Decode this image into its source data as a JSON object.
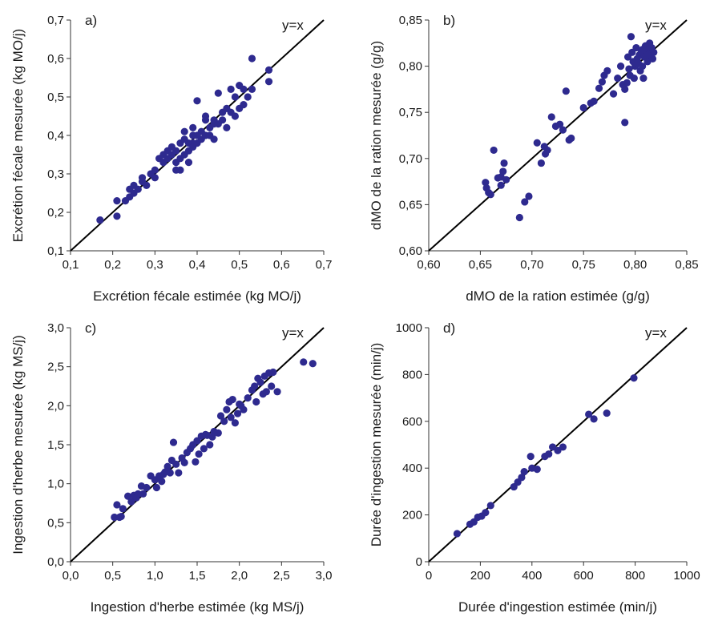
{
  "colors": {
    "point": "#2e2a8f",
    "axis": "#333333",
    "ref_line": "#000000"
  },
  "chart_data": [
    {
      "type": "scatter",
      "panel_label": "a)",
      "reference_label": "y=x",
      "xlabel": "Excrétion fécale estimée (kg MO/j)",
      "ylabel": "Excrétion fécale mesurée (kg MO/j)",
      "xlim": [
        0.1,
        0.7
      ],
      "ylim": [
        0.1,
        0.7
      ],
      "xticks": [
        0.1,
        0.2,
        0.3,
        0.4,
        0.5,
        0.6,
        0.7
      ],
      "yticks": [
        0.1,
        0.2,
        0.3,
        0.4,
        0.5,
        0.6,
        0.7
      ],
      "xtick_labels": [
        "0,1",
        "0,2",
        "0,3",
        "0,4",
        "0,5",
        "0,6",
        "0,7"
      ],
      "ytick_labels": [
        "0,1",
        "0,2",
        "0,3",
        "0,4",
        "0,5",
        "0,6",
        "0,7"
      ],
      "grid": false,
      "points": [
        [
          0.17,
          0.18
        ],
        [
          0.21,
          0.19
        ],
        [
          0.21,
          0.23
        ],
        [
          0.23,
          0.23
        ],
        [
          0.24,
          0.24
        ],
        [
          0.24,
          0.26
        ],
        [
          0.25,
          0.25
        ],
        [
          0.25,
          0.27
        ],
        [
          0.26,
          0.26
        ],
        [
          0.27,
          0.28
        ],
        [
          0.27,
          0.29
        ],
        [
          0.28,
          0.27
        ],
        [
          0.29,
          0.3
        ],
        [
          0.3,
          0.29
        ],
        [
          0.3,
          0.31
        ],
        [
          0.31,
          0.34
        ],
        [
          0.32,
          0.35
        ],
        [
          0.32,
          0.33
        ],
        [
          0.33,
          0.34
        ],
        [
          0.33,
          0.36
        ],
        [
          0.34,
          0.35
        ],
        [
          0.34,
          0.37
        ],
        [
          0.35,
          0.31
        ],
        [
          0.35,
          0.33
        ],
        [
          0.35,
          0.36
        ],
        [
          0.36,
          0.38
        ],
        [
          0.36,
          0.31
        ],
        [
          0.36,
          0.34
        ],
        [
          0.37,
          0.35
        ],
        [
          0.37,
          0.41
        ],
        [
          0.38,
          0.38
        ],
        [
          0.38,
          0.36
        ],
        [
          0.38,
          0.33
        ],
        [
          0.39,
          0.38
        ],
        [
          0.39,
          0.4
        ],
        [
          0.39,
          0.37
        ],
        [
          0.4,
          0.49
        ],
        [
          0.4,
          0.38
        ],
        [
          0.41,
          0.41
        ],
        [
          0.41,
          0.39
        ],
        [
          0.42,
          0.44
        ],
        [
          0.42,
          0.45
        ],
        [
          0.43,
          0.42
        ],
        [
          0.43,
          0.4
        ],
        [
          0.44,
          0.43
        ],
        [
          0.44,
          0.44
        ],
        [
          0.45,
          0.51
        ],
        [
          0.45,
          0.43
        ],
        [
          0.46,
          0.46
        ],
        [
          0.46,
          0.44
        ],
        [
          0.47,
          0.47
        ],
        [
          0.47,
          0.42
        ],
        [
          0.48,
          0.46
        ],
        [
          0.48,
          0.52
        ],
        [
          0.49,
          0.5
        ],
        [
          0.49,
          0.45
        ],
        [
          0.5,
          0.53
        ],
        [
          0.5,
          0.47
        ],
        [
          0.51,
          0.48
        ],
        [
          0.51,
          0.52
        ],
        [
          0.52,
          0.5
        ],
        [
          0.53,
          0.6
        ],
        [
          0.53,
          0.52
        ],
        [
          0.57,
          0.57
        ],
        [
          0.57,
          0.54
        ],
        [
          0.42,
          0.4
        ],
        [
          0.44,
          0.39
        ],
        [
          0.4,
          0.4
        ],
        [
          0.39,
          0.42
        ],
        [
          0.37,
          0.39
        ]
      ]
    },
    {
      "type": "scatter",
      "panel_label": "b)",
      "reference_label": "y=x",
      "xlabel": "dMO de la ration estimée (g/g)",
      "ylabel": "dMO de la ration mesurée (g/g)",
      "xlim": [
        0.6,
        0.85
      ],
      "ylim": [
        0.6,
        0.85
      ],
      "xticks": [
        0.6,
        0.65,
        0.7,
        0.75,
        0.8,
        0.85
      ],
      "yticks": [
        0.6,
        0.65,
        0.7,
        0.75,
        0.8,
        0.85
      ],
      "xtick_labels": [
        "0,60",
        "0,65",
        "0,70",
        "0,75",
        "0,80",
        "0,85"
      ],
      "ytick_labels": [
        "0,60",
        "0,65",
        "0,70",
        "0,75",
        "0,80",
        "0,85"
      ],
      "grid": false,
      "points": [
        [
          0.655,
          0.674
        ],
        [
          0.656,
          0.668
        ],
        [
          0.658,
          0.663
        ],
        [
          0.66,
          0.661
        ],
        [
          0.663,
          0.709
        ],
        [
          0.667,
          0.679
        ],
        [
          0.67,
          0.68
        ],
        [
          0.672,
          0.686
        ],
        [
          0.673,
          0.695
        ],
        [
          0.675,
          0.677
        ],
        [
          0.67,
          0.671
        ],
        [
          0.688,
          0.636
        ],
        [
          0.693,
          0.653
        ],
        [
          0.697,
          0.659
        ],
        [
          0.705,
          0.717
        ],
        [
          0.709,
          0.695
        ],
        [
          0.712,
          0.713
        ],
        [
          0.713,
          0.705
        ],
        [
          0.715,
          0.709
        ],
        [
          0.719,
          0.745
        ],
        [
          0.723,
          0.735
        ],
        [
          0.727,
          0.737
        ],
        [
          0.73,
          0.731
        ],
        [
          0.733,
          0.773
        ],
        [
          0.736,
          0.72
        ],
        [
          0.738,
          0.722
        ],
        [
          0.75,
          0.755
        ],
        [
          0.757,
          0.76
        ],
        [
          0.76,
          0.762
        ],
        [
          0.765,
          0.776
        ],
        [
          0.768,
          0.783
        ],
        [
          0.77,
          0.79
        ],
        [
          0.773,
          0.795
        ],
        [
          0.779,
          0.77
        ],
        [
          0.783,
          0.787
        ],
        [
          0.786,
          0.8
        ],
        [
          0.788,
          0.78
        ],
        [
          0.79,
          0.739
        ],
        [
          0.79,
          0.775
        ],
        [
          0.792,
          0.782
        ],
        [
          0.793,
          0.81
        ],
        [
          0.794,
          0.797
        ],
        [
          0.795,
          0.79
        ],
        [
          0.796,
          0.832
        ],
        [
          0.797,
          0.815
        ],
        [
          0.798,
          0.805
        ],
        [
          0.799,
          0.787
        ],
        [
          0.8,
          0.8
        ],
        [
          0.801,
          0.82
        ],
        [
          0.802,
          0.808
        ],
        [
          0.804,
          0.812
        ],
        [
          0.805,
          0.795
        ],
        [
          0.806,
          0.815
        ],
        [
          0.807,
          0.818
        ],
        [
          0.808,
          0.787
        ],
        [
          0.809,
          0.81
        ],
        [
          0.81,
          0.822
        ],
        [
          0.811,
          0.817
        ],
        [
          0.812,
          0.805
        ],
        [
          0.813,
          0.813
        ],
        [
          0.814,
          0.825
        ],
        [
          0.815,
          0.81
        ],
        [
          0.816,
          0.82
        ],
        [
          0.817,
          0.808
        ],
        [
          0.818,
          0.815
        ],
        [
          0.807,
          0.8
        ],
        [
          0.803,
          0.803
        ],
        [
          0.812,
          0.812
        ]
      ]
    },
    {
      "type": "scatter",
      "panel_label": "c)",
      "reference_label": "y=x",
      "xlabel": "Ingestion d'herbe estimée (kg MS/j)",
      "ylabel": "Ingestion d'herbe mesurée (kg MS/j)",
      "xlim": [
        0.0,
        3.0
      ],
      "ylim": [
        0.0,
        3.0
      ],
      "xticks": [
        0.0,
        0.5,
        1.0,
        1.5,
        2.0,
        2.5,
        3.0
      ],
      "yticks": [
        0.0,
        0.5,
        1.0,
        1.5,
        2.0,
        2.5,
        3.0
      ],
      "xtick_labels": [
        "0,0",
        "0,5",
        "1,0",
        "1,5",
        "2,0",
        "2,5",
        "3,0"
      ],
      "ytick_labels": [
        "0,0",
        "0,5",
        "1,0",
        "1,5",
        "2,0",
        "2,5",
        "3,0"
      ],
      "grid": false,
      "points": [
        [
          0.52,
          0.57
        ],
        [
          0.55,
          0.73
        ],
        [
          0.58,
          0.57
        ],
        [
          0.62,
          0.68
        ],
        [
          0.68,
          0.84
        ],
        [
          0.72,
          0.77
        ],
        [
          0.75,
          0.85
        ],
        [
          0.78,
          0.82
        ],
        [
          0.8,
          0.87
        ],
        [
          0.84,
          0.97
        ],
        [
          0.86,
          0.87
        ],
        [
          0.9,
          0.95
        ],
        [
          0.95,
          1.1
        ],
        [
          1.0,
          1.05
        ],
        [
          1.02,
          0.95
        ],
        [
          1.05,
          1.1
        ],
        [
          1.08,
          1.03
        ],
        [
          1.12,
          1.15
        ],
        [
          1.15,
          1.22
        ],
        [
          1.18,
          1.14
        ],
        [
          1.2,
          1.3
        ],
        [
          1.22,
          1.53
        ],
        [
          1.25,
          1.25
        ],
        [
          1.28,
          1.14
        ],
        [
          1.32,
          1.33
        ],
        [
          1.35,
          1.27
        ],
        [
          1.38,
          1.4
        ],
        [
          1.42,
          1.45
        ],
        [
          1.45,
          1.5
        ],
        [
          1.48,
          1.28
        ],
        [
          1.5,
          1.55
        ],
        [
          1.52,
          1.38
        ],
        [
          1.55,
          1.61
        ],
        [
          1.58,
          1.45
        ],
        [
          1.62,
          1.62
        ],
        [
          1.65,
          1.5
        ],
        [
          1.68,
          1.6
        ],
        [
          1.7,
          1.67
        ],
        [
          1.75,
          1.65
        ],
        [
          1.78,
          1.87
        ],
        [
          1.82,
          1.8
        ],
        [
          1.85,
          1.95
        ],
        [
          1.88,
          2.05
        ],
        [
          1.9,
          1.85
        ],
        [
          1.92,
          2.08
        ],
        [
          1.95,
          1.78
        ],
        [
          1.98,
          1.9
        ],
        [
          2.0,
          2.02
        ],
        [
          2.05,
          1.95
        ],
        [
          2.1,
          2.1
        ],
        [
          2.15,
          2.2
        ],
        [
          2.18,
          2.25
        ],
        [
          2.2,
          2.05
        ],
        [
          2.22,
          2.35
        ],
        [
          2.25,
          2.3
        ],
        [
          2.28,
          2.15
        ],
        [
          2.3,
          2.38
        ],
        [
          2.32,
          2.18
        ],
        [
          2.35,
          2.42
        ],
        [
          2.38,
          2.25
        ],
        [
          2.4,
          2.43
        ],
        [
          2.45,
          2.18
        ],
        [
          2.76,
          2.56
        ],
        [
          2.87,
          2.54
        ],
        [
          0.6,
          0.58
        ],
        [
          1.1,
          1.12
        ],
        [
          1.6,
          1.63
        ],
        [
          2.02,
          2.0
        ]
      ]
    },
    {
      "type": "scatter",
      "panel_label": "d)",
      "reference_label": "y=x",
      "xlabel": "Durée d'ingestion estimée (min/j)",
      "ylabel": "Durée d'ingestion mesurée (min/j)",
      "xlim": [
        0,
        1000
      ],
      "ylim": [
        0,
        1000
      ],
      "xticks": [
        0,
        200,
        400,
        600,
        800,
        1000
      ],
      "yticks": [
        0,
        200,
        400,
        600,
        800,
        1000
      ],
      "xtick_labels": [
        "0",
        "200",
        "400",
        "600",
        "800",
        "1000"
      ],
      "ytick_labels": [
        "0",
        "200",
        "400",
        "600",
        "800",
        "1000"
      ],
      "grid": false,
      "points": [
        [
          110,
          120
        ],
        [
          160,
          160
        ],
        [
          175,
          170
        ],
        [
          190,
          190
        ],
        [
          205,
          195
        ],
        [
          220,
          210
        ],
        [
          240,
          240
        ],
        [
          330,
          320
        ],
        [
          345,
          340
        ],
        [
          360,
          360
        ],
        [
          370,
          385
        ],
        [
          395,
          450
        ],
        [
          400,
          400
        ],
        [
          420,
          395
        ],
        [
          450,
          450
        ],
        [
          465,
          460
        ],
        [
          480,
          490
        ],
        [
          500,
          475
        ],
        [
          520,
          490
        ],
        [
          620,
          630
        ],
        [
          640,
          610
        ],
        [
          690,
          635
        ],
        [
          795,
          785
        ]
      ]
    }
  ]
}
